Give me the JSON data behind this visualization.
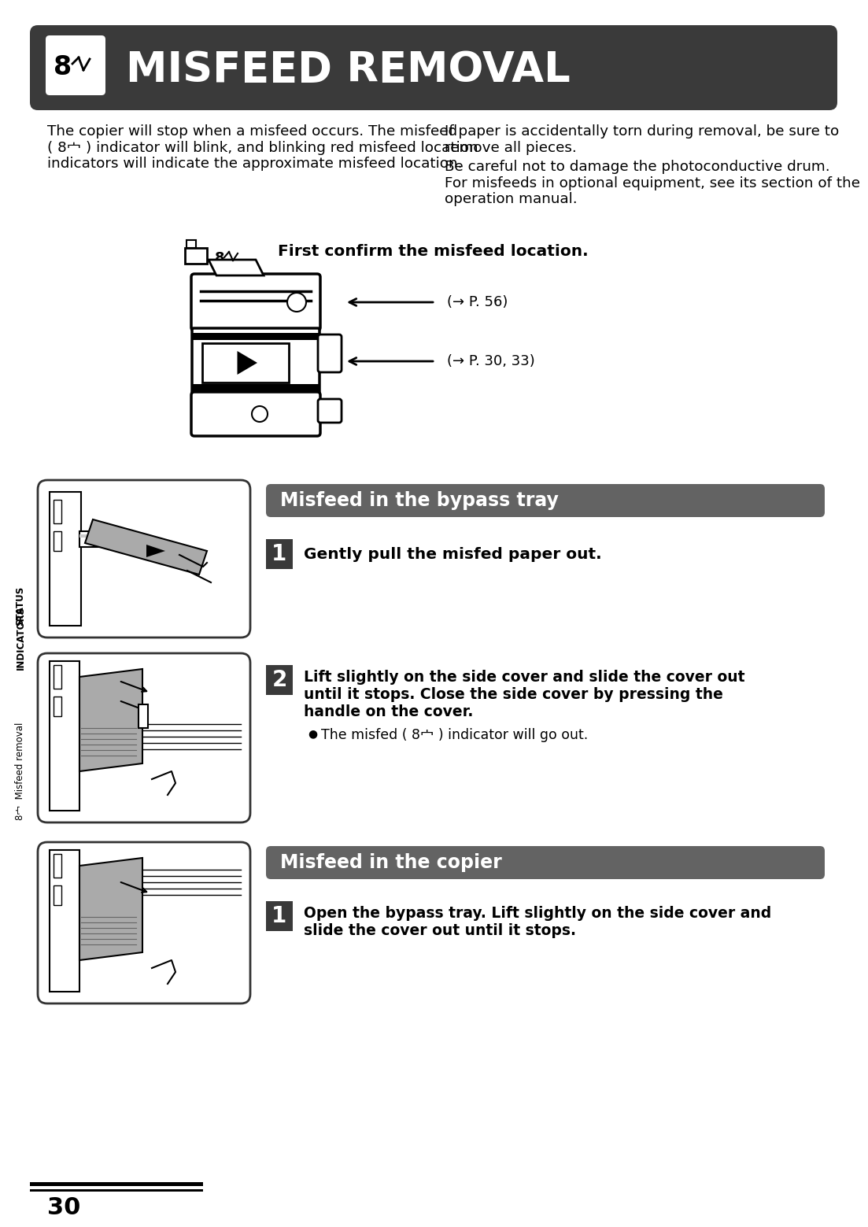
{
  "bg_color": "#ffffff",
  "header_bg": "#3a3a3a",
  "header_text": "MISFEED REMOVAL",
  "header_text_color": "#ffffff",
  "header_font_size": 38,
  "left_col_text_lines": [
    "The copier will stop when a misfeed occurs. The misfeed",
    "( 8⼧ ) indicator will blink, and blinking red misfeed location",
    "indicators will indicate the approximate misfeed location."
  ],
  "right_col_text_lines": [
    "If paper is accidentally torn during removal, be sure to",
    "remove all pieces.",
    "Be careful not to damage the photoconductive drum.",
    "For misfeeds in optional equipment, see its section of the",
    "operation manual."
  ],
  "confirm_text": "First confirm the misfeed location.",
  "arrow_label1": "(→ P. 56)",
  "arrow_label2": "(→ P. 30, 33)",
  "section1_title": "Misfeed in the bypass tray",
  "section1_step1_bold": "Gently pull the misfed paper out.",
  "section2_step2_bold_line1": "Lift slightly on the side cover and slide the cover out",
  "section2_step2_bold_line2": "until it stops. Close the side cover by pressing the",
  "section2_step2_bold_line3": "handle on the cover.",
  "section2_step2_bullet": "The misfed ( 8⼧ ) indicator will go out.",
  "section2_title": "Misfeed in the copier",
  "section3_step1_bold_line1": "Open the bypass tray. Lift slightly on the side cover and",
  "section3_step1_bold_line2": "slide the cover out until it stops.",
  "page_number": "30",
  "sidebar_text1": "STATUS",
  "sidebar_text2": "INDICATORS",
  "sidebar_text3": "8⼧  Misfeed removal",
  "section_title_bg": "#636363",
  "section_title_color": "#ffffff",
  "step_number_bg": "#3a3a3a",
  "step_number_color": "#ffffff",
  "img_border": "#333333",
  "img_fill": "#ffffff"
}
